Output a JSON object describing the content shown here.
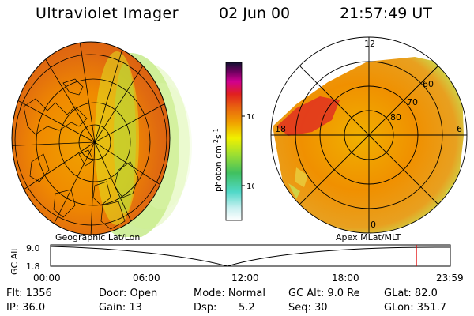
{
  "header": {
    "title": "Ultraviolet Imager",
    "date": "02 Jun 00",
    "time": "21:57:49 UT"
  },
  "left_panel": {
    "label": "Geographic Lat/Lon"
  },
  "right_panel": {
    "label": "Apex MLat/MLT",
    "lat_labels": [
      "60",
      "70",
      "80"
    ],
    "mlt_labels": [
      "12",
      "18",
      "6",
      "0"
    ]
  },
  "colorbar": {
    "unit_label": "photon cm",
    "exp1": "-2",
    "mid": "s",
    "exp2": "-1",
    "ticks": [
      "100",
      "10"
    ]
  },
  "altitude_plot": {
    "ylabel": "GC Alt",
    "yticks": [
      "9.0",
      "1.8"
    ],
    "xticks": [
      "00:00",
      "06:00",
      "12:00",
      "18:00",
      "23:59"
    ],
    "current_time_hours": 21.96
  },
  "info": {
    "flt": "Flt: 1356",
    "ip": "IP: 36.0",
    "door": "Door: Open",
    "gain": "Gain: 13",
    "mode": "Mode: Normal",
    "dsp_label": "Dsp:",
    "dsp_value": "5.2",
    "gcalt": "GC Alt: 9.0 Re",
    "seq": "Seq: 30",
    "glat": "GLat: 82.0",
    "glon": "GLon: 351.7"
  }
}
